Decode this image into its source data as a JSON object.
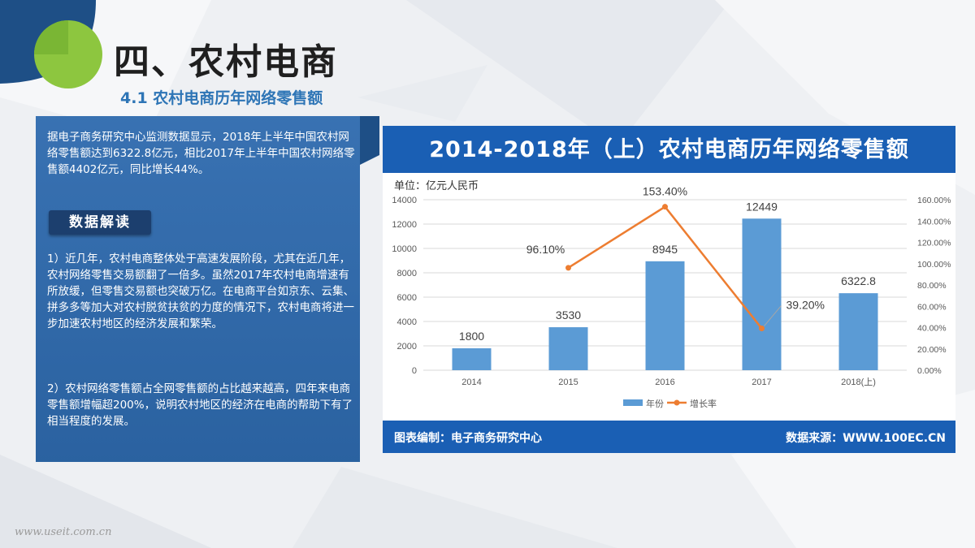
{
  "title": "四、农村电商",
  "subtitle": "4.1 农村电商历年网络零售额",
  "panel": {
    "intro": "据电子商务研究中心监测数据显示，2018年上半年中国农村网络零售额达到6322.8亿元，相比2017年上半年中国农村网络零售额4402亿元，同比增长44%。",
    "badge": "数据解读",
    "point1": "1）近几年，农村电商整体处于高速发展阶段，尤其在近几年，农村网络零售交易额翻了一倍多。虽然2017年农村电商增速有所放缓，但零售交易额也突破万亿。在电商平台如京东、云集、拼多多等加大对农村脱贫扶贫的力度的情况下，农村电商将进一步加速农村地区的经济发展和繁荣。",
    "point2": "2）农村网络零售额占全网零售额的占比越来越高，四年来电商零售额增幅超200%，说明农村地区的经济在电商的帮助下有了相当程度的发展。"
  },
  "chart_header": "2014-2018年（上）农村电商历年网络零售额",
  "footer_left": "图表编制：电子商务研究中心",
  "footer_right": "数据来源：WWW.100EC.CN",
  "watermark": "www.useit.com.cn",
  "colors": {
    "bar": "#5b9bd5",
    "line": "#ed7d31",
    "header": "#1a5fb4",
    "panel": "#2e6aae"
  },
  "chart_data": {
    "type": "bar",
    "ylabel": "单位：亿元人民币",
    "categories": [
      "2014",
      "2015",
      "2016",
      "2017",
      "2018(上)"
    ],
    "ylim": [
      0,
      14000
    ],
    "yticks": [
      "0",
      "2000",
      "4000",
      "6000",
      "8000",
      "10000",
      "12000",
      "14000"
    ],
    "y2lim": [
      0,
      160
    ],
    "y2ticks": [
      "0.00%",
      "20.00%",
      "40.00%",
      "60.00%",
      "80.00%",
      "100.00%",
      "120.00%",
      "140.00%",
      "160.00%"
    ],
    "series": [
      {
        "name": "年份",
        "type": "bar",
        "values": [
          1800,
          3530,
          8945,
          12449,
          6322.8
        ],
        "labels": [
          "1800",
          "3530",
          "8945",
          "12449",
          "6322.8"
        ]
      },
      {
        "name": "增长率",
        "type": "line",
        "axis": "right",
        "x": [
          "2015",
          "2016",
          "2017"
        ],
        "values": [
          96.1,
          153.4,
          39.2
        ],
        "labels": [
          "96.10%",
          "153.40%",
          "39.20%"
        ]
      }
    ],
    "grid": true,
    "legend": "bottom"
  }
}
